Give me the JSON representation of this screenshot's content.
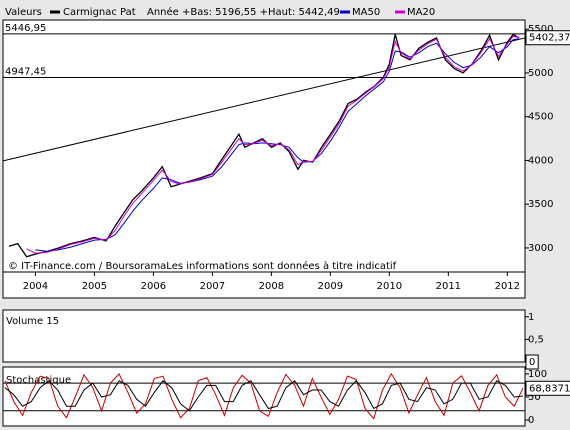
{
  "chart_data": [
    {
      "type": "line",
      "title": "Valeurs",
      "subtitle": "Année +Bas: 5196,55 +Haut: 5442,49",
      "annotation": "© IT-Finance.com / BoursoramaLes informations sont données à titre indicatif",
      "x": [
        2003.55,
        2003.7,
        2003.85,
        2004.0,
        2004.2,
        2004.4,
        2004.6,
        2004.8,
        2005.0,
        2005.2,
        2005.35,
        2005.5,
        2005.65,
        2005.8,
        2006.0,
        2006.15,
        2006.3,
        2006.45,
        2006.6,
        2006.8,
        2007.0,
        2007.15,
        2007.3,
        2007.45,
        2007.55,
        2007.7,
        2007.85,
        2008.0,
        2008.15,
        2008.3,
        2008.45,
        2008.55,
        2008.7,
        2008.85,
        2009.0,
        2009.15,
        2009.3,
        2009.45,
        2009.6,
        2009.75,
        2009.9,
        2010.0,
        2010.1,
        2010.2,
        2010.35,
        2010.5,
        2010.65,
        2010.8,
        2010.95,
        2011.1,
        2011.25,
        2011.4,
        2011.55,
        2011.7,
        2011.85,
        2012.0,
        2012.1,
        2012.2
      ],
      "series": [
        {
          "name": "Carmignac Pat",
          "color": "#000000",
          "values": [
            3020,
            3050,
            2900,
            2930,
            2960,
            3000,
            3050,
            3080,
            3120,
            3080,
            3250,
            3400,
            3550,
            3650,
            3800,
            3930,
            3700,
            3730,
            3760,
            3800,
            3850,
            4000,
            4150,
            4300,
            4150,
            4200,
            4250,
            4150,
            4200,
            4100,
            3900,
            4000,
            3980,
            4150,
            4300,
            4450,
            4650,
            4700,
            4780,
            4850,
            4950,
            5100,
            5440,
            5200,
            5150,
            5280,
            5350,
            5400,
            5150,
            5050,
            5000,
            5100,
            5250,
            5430,
            5150,
            5350,
            5440,
            5400
          ]
        },
        {
          "name": "MA50",
          "color": "#0000cc",
          "values": [
            null,
            null,
            null,
            2980,
            2960,
            2980,
            3010,
            3050,
            3090,
            3100,
            3150,
            3280,
            3420,
            3540,
            3680,
            3800,
            3780,
            3740,
            3750,
            3780,
            3820,
            3920,
            4050,
            4180,
            4200,
            4190,
            4200,
            4190,
            4180,
            4150,
            4030,
            3980,
            3990,
            4080,
            4220,
            4380,
            4560,
            4650,
            4740,
            4820,
            4900,
            5020,
            5250,
            5240,
            5180,
            5230,
            5300,
            5340,
            5220,
            5120,
            5060,
            5090,
            5180,
            5300,
            5230,
            5300,
            5380,
            5390
          ]
        },
        {
          "name": "MA20",
          "color": "#cc00cc",
          "values": [
            null,
            null,
            2990,
            2940,
            2950,
            2990,
            3040,
            3070,
            3110,
            3090,
            3200,
            3360,
            3510,
            3620,
            3770,
            3890,
            3760,
            3730,
            3755,
            3790,
            3840,
            3970,
            4110,
            4250,
            4180,
            4195,
            4230,
            4170,
            4190,
            4120,
            3950,
            3990,
            3985,
            4120,
            4270,
            4420,
            4620,
            4690,
            4770,
            4845,
            4935,
            5070,
            5360,
            5230,
            5160,
            5260,
            5335,
            5385,
            5180,
            5070,
            5020,
            5095,
            5230,
            5390,
            5190,
            5330,
            5420,
            5405
          ]
        }
      ],
      "xlim": [
        2003.45,
        2012.3
      ],
      "xticks": [
        2004,
        2005,
        2006,
        2007,
        2008,
        2009,
        2010,
        2011,
        2012
      ],
      "ylim": [
        2725,
        5605
      ],
      "yticks": [
        3000,
        3500,
        4000,
        4500,
        5000,
        5500
      ],
      "reference_lines": [
        {
          "value": 5446.95,
          "label": "5446,95"
        },
        {
          "value": 4947.45,
          "label": "4947,45"
        }
      ],
      "trendline": {
        "x": [
          2003.45,
          2012.3
        ],
        "values": [
          3995,
          5400
        ]
      },
      "last_value": {
        "value": 5402.37,
        "label": "5402,37"
      }
    },
    {
      "type": "bar",
      "title": "Volume 15",
      "values": [],
      "ylim": [
        0,
        1.15
      ],
      "yticks": [
        0,
        {
          "value": 0.5,
          "label": "0,5"
        },
        1
      ],
      "last_value": 0
    },
    {
      "type": "line",
      "title": "Stochastique",
      "series": [
        {
          "color": "#c00000",
          "values": [
            85,
            40,
            10,
            60,
            95,
            90,
            30,
            5,
            50,
            98,
            70,
            20,
            80,
            100,
            60,
            15,
            35,
            90,
            95,
            45,
            5,
            25,
            85,
            92,
            55,
            10,
            70,
            97,
            80,
            20,
            8,
            60,
            99,
            75,
            30,
            90,
            50,
            12,
            45,
            95,
            88,
            25,
            3,
            65,
            100,
            70,
            15,
            55,
            92,
            40,
            10,
            80,
            96,
            60,
            20,
            75,
            98,
            50,
            30,
            69
          ]
        },
        {
          "color": "#000000",
          "values": [
            70,
            55,
            30,
            40,
            70,
            85,
            65,
            30,
            30,
            65,
            80,
            50,
            55,
            85,
            75,
            45,
            30,
            60,
            85,
            70,
            35,
            20,
            50,
            75,
            75,
            40,
            40,
            75,
            85,
            55,
            25,
            30,
            70,
            85,
            55,
            65,
            65,
            40,
            30,
            65,
            85,
            60,
            25,
            35,
            75,
            80,
            45,
            40,
            70,
            65,
            35,
            45,
            80,
            80,
            45,
            50,
            85,
            75,
            50,
            52
          ]
        }
      ],
      "ylim": [
        -13,
        115
      ],
      "yticks": [
        0,
        50,
        100
      ],
      "reference_lines": [
        20,
        80
      ],
      "last_value": {
        "value": 68.8371,
        "label": "68,8371"
      }
    }
  ]
}
